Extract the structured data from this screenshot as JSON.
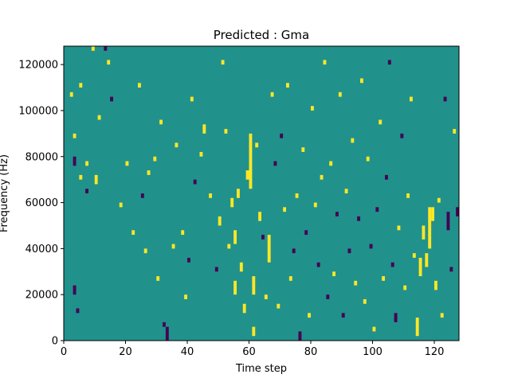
{
  "chart_data": {
    "type": "heatmap",
    "title": "Predicted : Gma",
    "xlabel": "Time step",
    "ylabel": "Frequency (Hz)",
    "xlim": [
      0,
      128
    ],
    "ylim": [
      0,
      128000
    ],
    "x_ticks": [
      0,
      20,
      40,
      60,
      80,
      100,
      120
    ],
    "y_ticks": [
      0,
      20000,
      40000,
      60000,
      80000,
      100000,
      120000
    ],
    "x_tick_labels": [
      "0",
      "20",
      "40",
      "60",
      "80",
      "100",
      "120"
    ],
    "y_tick_labels": [
      "0",
      "20000",
      "40000",
      "60000",
      "80000",
      "100000",
      "120000"
    ],
    "colormap": "viridis",
    "value_levels": [
      -1,
      0,
      1
    ],
    "level_colors": {
      "-1": "#440154",
      "0": "#21918c",
      "1": "#fde725"
    },
    "background_value": 0,
    "grid": false,
    "legend": "none",
    "n_time_steps": 128,
    "n_freq_bins": 64,
    "freq_bin_width_hz": 2000,
    "cells_note": "each cell: [time_step_start, time_step_end_exclusive, freq_low_hz, freq_high_hz, value]",
    "cells": [
      [
        2,
        3,
        106000,
        108000,
        1
      ],
      [
        3,
        4,
        88000,
        90000,
        1
      ],
      [
        3,
        4,
        76000,
        80000,
        -1
      ],
      [
        5,
        6,
        70000,
        72000,
        1
      ],
      [
        7,
        8,
        76000,
        78000,
        1
      ],
      [
        7,
        8,
        64000,
        66000,
        -1
      ],
      [
        4,
        5,
        12000,
        14000,
        -1
      ],
      [
        3,
        4,
        20000,
        24000,
        -1
      ],
      [
        5,
        6,
        110000,
        112000,
        1
      ],
      [
        9,
        10,
        126000,
        128000,
        1
      ],
      [
        10,
        11,
        68000,
        72000,
        1
      ],
      [
        11,
        12,
        96000,
        98000,
        1
      ],
      [
        13,
        14,
        126000,
        128000,
        -1
      ],
      [
        14,
        15,
        120000,
        122000,
        1
      ],
      [
        15,
        16,
        104000,
        106000,
        -1
      ],
      [
        18,
        19,
        58000,
        60000,
        1
      ],
      [
        20,
        21,
        76000,
        78000,
        1
      ],
      [
        22,
        23,
        46000,
        48000,
        1
      ],
      [
        24,
        25,
        110000,
        112000,
        1
      ],
      [
        25,
        26,
        62000,
        64000,
        -1
      ],
      [
        26,
        27,
        38000,
        40000,
        1
      ],
      [
        27,
        28,
        72000,
        74000,
        1
      ],
      [
        29,
        30,
        78000,
        80000,
        1
      ],
      [
        30,
        31,
        26000,
        28000,
        1
      ],
      [
        31,
        32,
        94000,
        96000,
        1
      ],
      [
        32,
        33,
        6000,
        8000,
        -1
      ],
      [
        33,
        34,
        0,
        6000,
        -1
      ],
      [
        35,
        36,
        40000,
        42000,
        1
      ],
      [
        36,
        37,
        84000,
        86000,
        1
      ],
      [
        38,
        39,
        46000,
        48000,
        1
      ],
      [
        39,
        40,
        18000,
        20000,
        1
      ],
      [
        40,
        41,
        34000,
        36000,
        -1
      ],
      [
        41,
        42,
        104000,
        106000,
        1
      ],
      [
        42,
        43,
        68000,
        70000,
        -1
      ],
      [
        44,
        45,
        80000,
        82000,
        1
      ],
      [
        45,
        46,
        90000,
        94000,
        1
      ],
      [
        47,
        48,
        62000,
        64000,
        1
      ],
      [
        49,
        50,
        30000,
        32000,
        -1
      ],
      [
        50,
        51,
        50000,
        54000,
        1
      ],
      [
        51,
        52,
        120000,
        122000,
        1
      ],
      [
        52,
        53,
        90000,
        92000,
        1
      ],
      [
        53,
        54,
        40000,
        42000,
        1
      ],
      [
        54,
        55,
        58000,
        62000,
        1
      ],
      [
        55,
        56,
        20000,
        26000,
        1
      ],
      [
        55,
        56,
        42000,
        48000,
        1
      ],
      [
        56,
        57,
        62000,
        66000,
        1
      ],
      [
        57,
        58,
        30000,
        34000,
        1
      ],
      [
        58,
        59,
        12000,
        16000,
        1
      ],
      [
        59,
        60,
        70000,
        74000,
        1
      ],
      [
        60,
        61,
        66000,
        90000,
        1
      ],
      [
        61,
        62,
        2000,
        6000,
        1
      ],
      [
        61,
        62,
        20000,
        28000,
        1
      ],
      [
        62,
        63,
        84000,
        86000,
        1
      ],
      [
        63,
        64,
        52000,
        56000,
        1
      ],
      [
        64,
        65,
        44000,
        46000,
        -1
      ],
      [
        65,
        66,
        18000,
        20000,
        1
      ],
      [
        66,
        67,
        34000,
        46000,
        1
      ],
      [
        67,
        68,
        106000,
        108000,
        1
      ],
      [
        68,
        69,
        76000,
        78000,
        -1
      ],
      [
        69,
        70,
        14000,
        16000,
        1
      ],
      [
        70,
        71,
        88000,
        90000,
        -1
      ],
      [
        71,
        72,
        56000,
        58000,
        1
      ],
      [
        72,
        73,
        110000,
        112000,
        1
      ],
      [
        73,
        74,
        26000,
        28000,
        1
      ],
      [
        74,
        75,
        38000,
        40000,
        -1
      ],
      [
        75,
        76,
        62000,
        64000,
        1
      ],
      [
        76,
        77,
        0,
        4000,
        -1
      ],
      [
        77,
        78,
        82000,
        84000,
        1
      ],
      [
        78,
        79,
        46000,
        48000,
        -1
      ],
      [
        79,
        80,
        10000,
        12000,
        1
      ],
      [
        80,
        81,
        100000,
        102000,
        1
      ],
      [
        81,
        82,
        58000,
        60000,
        1
      ],
      [
        82,
        83,
        32000,
        34000,
        -1
      ],
      [
        83,
        84,
        70000,
        72000,
        1
      ],
      [
        84,
        85,
        120000,
        122000,
        1
      ],
      [
        85,
        86,
        18000,
        20000,
        -1
      ],
      [
        86,
        87,
        76000,
        78000,
        1
      ],
      [
        87,
        88,
        28000,
        30000,
        1
      ],
      [
        88,
        89,
        54000,
        56000,
        -1
      ],
      [
        89,
        90,
        106000,
        108000,
        1
      ],
      [
        90,
        91,
        10000,
        12000,
        -1
      ],
      [
        91,
        92,
        64000,
        66000,
        1
      ],
      [
        92,
        93,
        38000,
        40000,
        -1
      ],
      [
        93,
        94,
        86000,
        88000,
        1
      ],
      [
        94,
        95,
        24000,
        26000,
        1
      ],
      [
        95,
        96,
        52000,
        54000,
        -1
      ],
      [
        96,
        97,
        112000,
        114000,
        1
      ],
      [
        97,
        98,
        16000,
        18000,
        1
      ],
      [
        98,
        99,
        78000,
        80000,
        1
      ],
      [
        99,
        100,
        40000,
        42000,
        -1
      ],
      [
        100,
        101,
        4000,
        6000,
        1
      ],
      [
        101,
        102,
        56000,
        58000,
        -1
      ],
      [
        102,
        103,
        94000,
        96000,
        1
      ],
      [
        103,
        104,
        26000,
        28000,
        1
      ],
      [
        104,
        105,
        70000,
        72000,
        -1
      ],
      [
        105,
        106,
        120000,
        122000,
        -1
      ],
      [
        106,
        107,
        32000,
        34000,
        -1
      ],
      [
        107,
        108,
        8000,
        12000,
        -1
      ],
      [
        108,
        109,
        48000,
        50000,
        1
      ],
      [
        109,
        110,
        88000,
        90000,
        -1
      ],
      [
        110,
        111,
        22000,
        24000,
        1
      ],
      [
        111,
        112,
        62000,
        64000,
        1
      ],
      [
        112,
        113,
        104000,
        106000,
        1
      ],
      [
        113,
        114,
        36000,
        38000,
        1
      ],
      [
        114,
        115,
        2000,
        10000,
        1
      ],
      [
        115,
        116,
        28000,
        36000,
        1
      ],
      [
        116,
        117,
        44000,
        50000,
        1
      ],
      [
        117,
        118,
        32000,
        38000,
        1
      ],
      [
        118,
        119,
        40000,
        58000,
        1
      ],
      [
        119,
        120,
        52000,
        58000,
        1
      ],
      [
        120,
        121,
        22000,
        26000,
        1
      ],
      [
        121,
        122,
        60000,
        62000,
        1
      ],
      [
        122,
        123,
        10000,
        12000,
        1
      ],
      [
        123,
        124,
        104000,
        106000,
        -1
      ],
      [
        124,
        125,
        48000,
        56000,
        -1
      ],
      [
        125,
        126,
        30000,
        32000,
        -1
      ],
      [
        126,
        127,
        90000,
        92000,
        1
      ],
      [
        127,
        128,
        54000,
        58000,
        -1
      ]
    ]
  }
}
